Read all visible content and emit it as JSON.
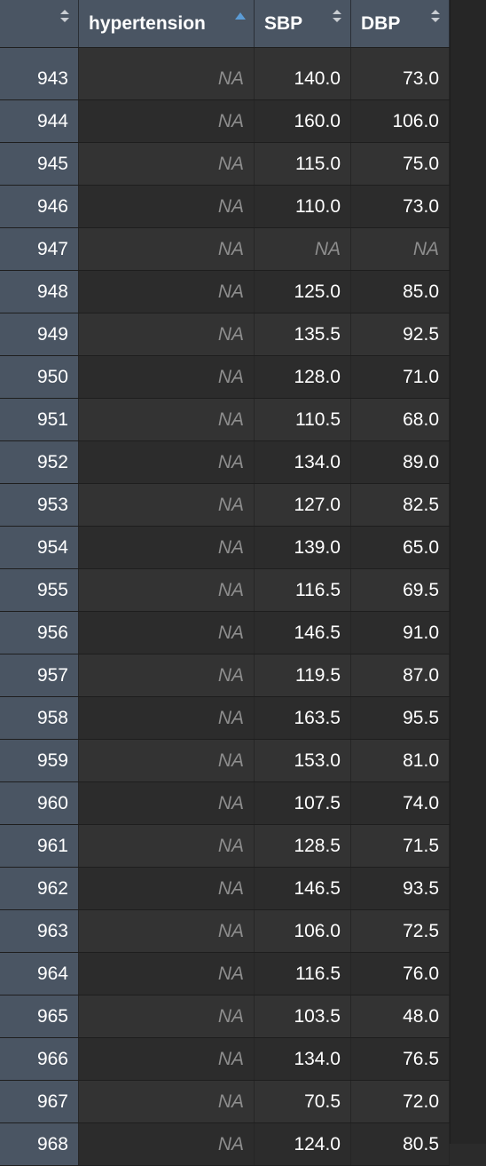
{
  "table": {
    "columns": [
      {
        "label": "",
        "sort": "none"
      },
      {
        "label": "hypertension",
        "sort": "ascending"
      },
      {
        "label": "SBP",
        "sort": "none"
      },
      {
        "label": "DBP",
        "sort": "none"
      }
    ],
    "rows": [
      {
        "id": "943",
        "hypertension": "NA",
        "sbp": "140.0",
        "dbp": "73.0"
      },
      {
        "id": "944",
        "hypertension": "NA",
        "sbp": "160.0",
        "dbp": "106.0"
      },
      {
        "id": "945",
        "hypertension": "NA",
        "sbp": "115.0",
        "dbp": "75.0"
      },
      {
        "id": "946",
        "hypertension": "NA",
        "sbp": "110.0",
        "dbp": "73.0"
      },
      {
        "id": "947",
        "hypertension": "NA",
        "sbp": "NA",
        "dbp": "NA"
      },
      {
        "id": "948",
        "hypertension": "NA",
        "sbp": "125.0",
        "dbp": "85.0"
      },
      {
        "id": "949",
        "hypertension": "NA",
        "sbp": "135.5",
        "dbp": "92.5"
      },
      {
        "id": "950",
        "hypertension": "NA",
        "sbp": "128.0",
        "dbp": "71.0"
      },
      {
        "id": "951",
        "hypertension": "NA",
        "sbp": "110.5",
        "dbp": "68.0"
      },
      {
        "id": "952",
        "hypertension": "NA",
        "sbp": "134.0",
        "dbp": "89.0"
      },
      {
        "id": "953",
        "hypertension": "NA",
        "sbp": "127.0",
        "dbp": "82.5"
      },
      {
        "id": "954",
        "hypertension": "NA",
        "sbp": "139.0",
        "dbp": "65.0"
      },
      {
        "id": "955",
        "hypertension": "NA",
        "sbp": "116.5",
        "dbp": "69.5"
      },
      {
        "id": "956",
        "hypertension": "NA",
        "sbp": "146.5",
        "dbp": "91.0"
      },
      {
        "id": "957",
        "hypertension": "NA",
        "sbp": "119.5",
        "dbp": "87.0"
      },
      {
        "id": "958",
        "hypertension": "NA",
        "sbp": "163.5",
        "dbp": "95.5"
      },
      {
        "id": "959",
        "hypertension": "NA",
        "sbp": "153.0",
        "dbp": "81.0"
      },
      {
        "id": "960",
        "hypertension": "NA",
        "sbp": "107.5",
        "dbp": "74.0"
      },
      {
        "id": "961",
        "hypertension": "NA",
        "sbp": "128.5",
        "dbp": "71.5"
      },
      {
        "id": "962",
        "hypertension": "NA",
        "sbp": "146.5",
        "dbp": "93.5"
      },
      {
        "id": "963",
        "hypertension": "NA",
        "sbp": "106.0",
        "dbp": "72.5"
      },
      {
        "id": "964",
        "hypertension": "NA",
        "sbp": "116.5",
        "dbp": "76.0"
      },
      {
        "id": "965",
        "hypertension": "NA",
        "sbp": "103.5",
        "dbp": "48.0"
      },
      {
        "id": "966",
        "hypertension": "NA",
        "sbp": "134.0",
        "dbp": "76.5"
      },
      {
        "id": "967",
        "hypertension": "NA",
        "sbp": "70.5",
        "dbp": "72.0"
      },
      {
        "id": "968",
        "hypertension": "NA",
        "sbp": "124.0",
        "dbp": "80.5"
      }
    ]
  },
  "colors": {
    "header_bg": "#4a5563",
    "rowname_bg": "#4a5563",
    "row_bg_odd": "#333333",
    "row_bg_even": "#2c2c2c",
    "na_text": "#8e8e8e",
    "sort_active": "#5b9bd5"
  },
  "icons": {
    "sort_neutral": "sort-arrows-icon",
    "sort_ascending": "sort-ascending-icon"
  }
}
